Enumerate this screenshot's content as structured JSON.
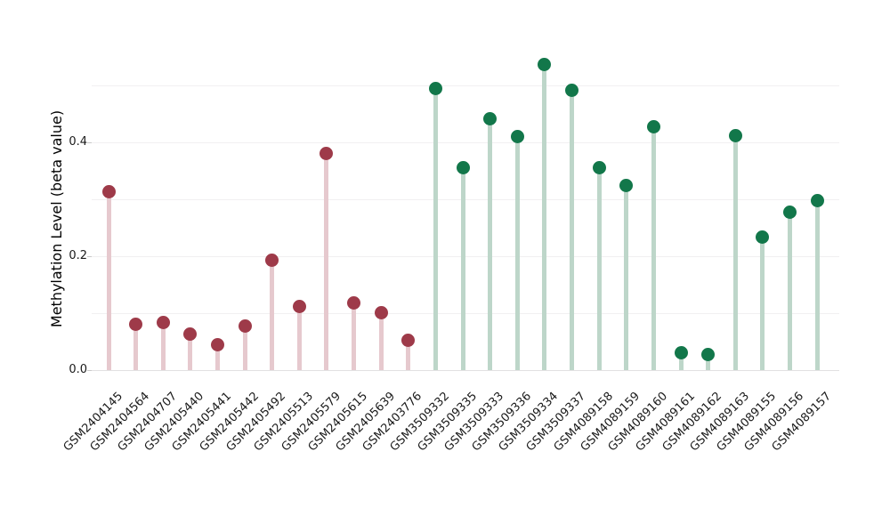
{
  "chart_data": {
    "type": "scatter",
    "variant": "lollipop-stem-plot",
    "title": "",
    "xlabel": "",
    "ylabel": "Methylation Level (beta value)",
    "ylim": [
      0.0,
      0.57
    ],
    "yticks": [
      0.0,
      0.2,
      0.4
    ],
    "ytick_labels": [
      "0.0",
      "0.2",
      "0.4"
    ],
    "gridlines_y": [
      0.1,
      0.2,
      0.3,
      0.4,
      0.5
    ],
    "grid": "horizontal-only",
    "legend_position": "none",
    "x_labels_rotation_degrees": 45,
    "categories": [
      "GSM2404145",
      "GSM2404564",
      "GSM2404707",
      "GSM2405440",
      "GSM2405441",
      "GSM2405442",
      "GSM2405492",
      "GSM2405513",
      "GSM2405579",
      "GSM2405615",
      "GSM2405639",
      "GSM2403776",
      "GSM3509332",
      "GSM3509335",
      "GSM3509333",
      "GSM3509336",
      "GSM3509334",
      "GSM3509337",
      "GSM4089158",
      "GSM4089159",
      "GSM4089160",
      "GSM4089161",
      "GSM4089162",
      "GSM4089163",
      "GSM4089155",
      "GSM4089156",
      "GSM4089157"
    ],
    "series": [
      {
        "name": "maroon-group",
        "dot_color": "#9e3a49",
        "stem_color": "#e6c9ce",
        "points": [
          {
            "label": "GSM2404145",
            "value": 0.313
          },
          {
            "label": "GSM2404564",
            "value": 0.081
          },
          {
            "label": "GSM2404707",
            "value": 0.083
          },
          {
            "label": "GSM2405440",
            "value": 0.064
          },
          {
            "label": "GSM2405441",
            "value": 0.045
          },
          {
            "label": "GSM2405442",
            "value": 0.078
          },
          {
            "label": "GSM2405492",
            "value": 0.193
          },
          {
            "label": "GSM2405513",
            "value": 0.112
          },
          {
            "label": "GSM2405579",
            "value": 0.381
          },
          {
            "label": "GSM2405615",
            "value": 0.118
          },
          {
            "label": "GSM2405639",
            "value": 0.101
          },
          {
            "label": "GSM2403776",
            "value": 0.052
          }
        ]
      },
      {
        "name": "green-group",
        "dot_color": "#12774a",
        "stem_color": "#bdd6c9",
        "points": [
          {
            "label": "GSM3509332",
            "value": 0.494
          },
          {
            "label": "GSM3509335",
            "value": 0.356
          },
          {
            "label": "GSM3509333",
            "value": 0.441
          },
          {
            "label": "GSM3509336",
            "value": 0.41
          },
          {
            "label": "GSM3509334",
            "value": 0.537
          },
          {
            "label": "GSM3509337",
            "value": 0.491
          },
          {
            "label": "GSM4089158",
            "value": 0.355
          },
          {
            "label": "GSM4089159",
            "value": 0.324
          },
          {
            "label": "GSM4089160",
            "value": 0.428
          },
          {
            "label": "GSM4089161",
            "value": 0.03
          },
          {
            "label": "GSM4089162",
            "value": 0.027
          },
          {
            "label": "GSM4089163",
            "value": 0.411
          },
          {
            "label": "GSM4089155",
            "value": 0.234
          },
          {
            "label": "GSM4089156",
            "value": 0.277
          },
          {
            "label": "GSM4089157",
            "value": 0.298
          }
        ]
      }
    ]
  }
}
